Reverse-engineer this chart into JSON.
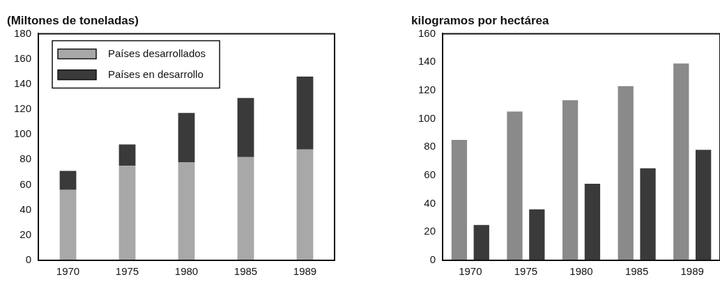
{
  "chart_data": [
    {
      "type": "bar",
      "title": "(Miltones de toneladas)",
      "categories": [
        "1970",
        "1975",
        "1980",
        "1985",
        "1989"
      ],
      "stacked": true,
      "legend": "top left",
      "grid": false,
      "ylim": [
        0,
        180
      ],
      "yticks": [
        0,
        20,
        40,
        60,
        80,
        100,
        120,
        140,
        160,
        180
      ],
      "series": [
        {
          "name": "Países desarrollados",
          "color": "#a8a8a8",
          "values": [
            56,
            75,
            78,
            82,
            88
          ]
        },
        {
          "name": "Países en desarrollo",
          "color": "#3a3a3a",
          "values": [
            15,
            17,
            39,
            47,
            58
          ]
        }
      ]
    },
    {
      "type": "bar",
      "title": "kilogramos por hectárea",
      "categories": [
        "1970",
        "1975",
        "1980",
        "1985",
        "1989"
      ],
      "grid": false,
      "ylim": [
        0,
        160
      ],
      "yticks": [
        0,
        20,
        40,
        60,
        80,
        100,
        120,
        140,
        160
      ],
      "series": [
        {
          "color": "#8a8a8a",
          "values": [
            85,
            105,
            113,
            123,
            139
          ]
        },
        {
          "color": "#3a3a3a",
          "values": [
            25,
            36,
            54,
            65,
            78
          ]
        }
      ]
    }
  ]
}
